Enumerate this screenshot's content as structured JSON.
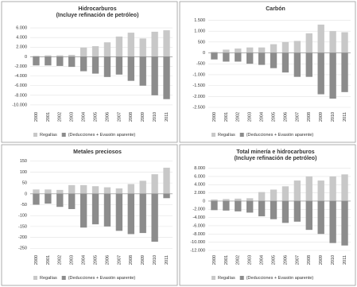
{
  "chart_data": [
    {
      "type": "bar",
      "title": "Hidrocarburos",
      "subtitle": "(Incluye refinación de petróleo)",
      "categories": [
        "2000",
        "2001",
        "2002",
        "2003",
        "2004",
        "2005",
        "2006",
        "2007",
        "2008",
        "2009",
        "2010",
        "2011"
      ],
      "series": [
        {
          "name": "Regalías",
          "color": "#c8c8c8",
          "values": [
            200,
            300,
            300,
            400,
            1900,
            2200,
            3000,
            4200,
            5000,
            3800,
            5200,
            5500
          ]
        },
        {
          "name": "(Deducciones + Evasión aparente)",
          "color": "#8c8c8c",
          "values": [
            -1800,
            -1800,
            -1900,
            -2100,
            -3000,
            -3500,
            -4200,
            -3700,
            -5000,
            -6000,
            -8000,
            -8800
          ]
        }
      ],
      "ylim": [
        -10500,
        7000
      ],
      "yticks": [
        {
          "value": 6000,
          "label": "6.000"
        },
        {
          "value": 4000,
          "label": "4.000"
        },
        {
          "value": 2000,
          "label": "2.000"
        },
        0,
        {
          "value": -2000,
          "label": "-2.000"
        },
        {
          "value": -4000,
          "label": "-4.000"
        },
        {
          "value": -6000,
          "label": "-6.000"
        },
        {
          "value": -8000,
          "label": "-8.000"
        },
        {
          "value": -10000,
          "label": "-10.000"
        }
      ],
      "grid": true
    },
    {
      "type": "bar",
      "title": "Carbón",
      "categories": [
        "2000",
        "2001",
        "2002",
        "2003",
        "2004",
        "2005",
        "2006",
        "2007",
        "2008",
        "2009",
        "2010",
        "2011"
      ],
      "series": [
        {
          "name": "Regalías",
          "color": "#c8c8c8",
          "values": [
            50,
            150,
            200,
            250,
            250,
            400,
            500,
            550,
            900,
            1300,
            1000,
            950
          ]
        },
        {
          "name": "(Deducciones + Evasión aparente)",
          "color": "#8c8c8c",
          "values": [
            -300,
            -400,
            -400,
            -500,
            -550,
            -700,
            -900,
            -1100,
            -1100,
            -1900,
            -2100,
            -1800
          ]
        }
      ],
      "ylim": [
        -2500,
        1700
      ],
      "yticks": [
        {
          "value": 1500,
          "label": "1.500"
        },
        {
          "value": 1000,
          "label": "1.000"
        },
        500,
        0,
        -500,
        {
          "value": -1000,
          "label": "-1.000"
        },
        {
          "value": -1500,
          "label": "-1.500"
        },
        {
          "value": -2000,
          "label": "-2.000"
        },
        {
          "value": -2500,
          "label": "-2.500"
        }
      ],
      "grid": true
    },
    {
      "type": "bar",
      "title": "Metales preciosos",
      "categories": [
        "2000",
        "2001",
        "2002",
        "2003",
        "2004",
        "2005",
        "2006",
        "2007",
        "2008",
        "2009",
        "2010",
        "2011"
      ],
      "series": [
        {
          "name": "Regalías",
          "color": "#c8c8c8",
          "values": [
            20,
            20,
            18,
            40,
            40,
            35,
            30,
            25,
            45,
            60,
            90,
            120
          ]
        },
        {
          "name": "(Deducciones + Evasión aparente)",
          "color": "#8c8c8c",
          "values": [
            -50,
            -45,
            -60,
            -70,
            -155,
            -140,
            -150,
            -170,
            -185,
            -180,
            -220,
            -20
          ]
        }
      ],
      "ylim": [
        -260,
        160
      ],
      "yticks": [
        150,
        100,
        50,
        0,
        -50,
        -100,
        -150,
        -200,
        -250
      ],
      "grid": true
    },
    {
      "type": "bar",
      "title": "Total minería e hidrocarburos",
      "subtitle": "(Incluye refinación de petróleo)",
      "categories": [
        "2000",
        "2001",
        "2002",
        "2003",
        "2004",
        "2005",
        "2006",
        "2007",
        "2008",
        "2009",
        "2010",
        "2011"
      ],
      "series": [
        {
          "name": "Regalías",
          "color": "#c8c8c8",
          "values": [
            400,
            500,
            600,
            700,
            2200,
            2800,
            3600,
            5000,
            6000,
            5000,
            6000,
            6500
          ]
        },
        {
          "name": "(Deducciones + Evasión aparente)",
          "color": "#8c8c8c",
          "values": [
            -2200,
            -2300,
            -2500,
            -2800,
            -3700,
            -4400,
            -5300,
            -5000,
            -7000,
            -8000,
            -10200,
            -10800
          ]
        }
      ],
      "ylim": [
        -12000,
        8500
      ],
      "yticks": [
        {
          "value": 8000,
          "label": "8.000"
        },
        {
          "value": 6000,
          "label": "6.000"
        },
        {
          "value": 4000,
          "label": "4.000"
        },
        {
          "value": 2000,
          "label": "2.000"
        },
        0,
        {
          "value": -2000,
          "label": "-2.000"
        },
        {
          "value": -4000,
          "label": "-4.000"
        },
        {
          "value": -6000,
          "label": "-6.000"
        },
        {
          "value": -8000,
          "label": "-8.000"
        },
        {
          "value": -10000,
          "label": "-10.000"
        },
        {
          "value": -12000,
          "label": "-12.000"
        }
      ],
      "grid": true
    }
  ]
}
